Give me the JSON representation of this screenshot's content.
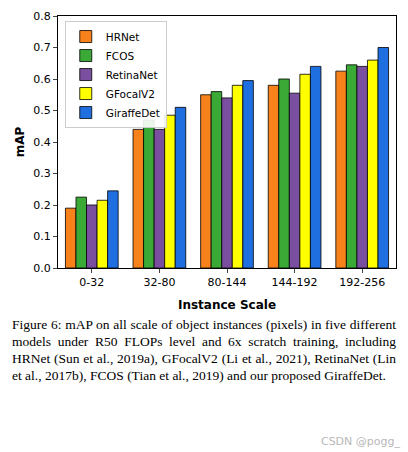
{
  "chart_data": {
    "type": "bar",
    "x_label": "Instance Scale",
    "y_label": "mAP",
    "categories": [
      "0-32",
      "32-80",
      "80-144",
      "144-192",
      "192-256"
    ],
    "series": [
      {
        "name": "HRNet",
        "color": "#f7821b",
        "values": [
          0.19,
          0.44,
          0.55,
          0.58,
          0.625
        ]
      },
      {
        "name": "FCOS",
        "color": "#3aa935",
        "values": [
          0.225,
          0.47,
          0.56,
          0.6,
          0.645
        ]
      },
      {
        "name": "RetinaNet",
        "color": "#7b4fa0",
        "values": [
          0.2,
          0.44,
          0.54,
          0.555,
          0.64
        ]
      },
      {
        "name": "GFocalV2",
        "color": "#ffff00",
        "values": [
          0.215,
          0.485,
          0.58,
          0.615,
          0.66
        ]
      },
      {
        "name": "GiraffeDet",
        "color": "#1f6fe0",
        "values": [
          0.245,
          0.51,
          0.595,
          0.64,
          0.7
        ]
      }
    ],
    "ylim": [
      0,
      0.8
    ],
    "yticks": [
      {
        "value": 0,
        "label": "0.0"
      },
      0.1,
      0.2,
      0.3,
      0.4,
      0.5,
      0.6,
      0.7,
      0.8
    ],
    "grid": false,
    "legend": "upper left"
  },
  "caption": "Figure 6: mAP on all scale of object instances (pixels) in five different models under R50 FLOPs level and 6x scratch training, including HRNet (Sun et al., 2019a), GFocalV2 (Li et al., 2021), RetinaNet (Lin et al., 2017b), FCOS (Tian et al., 2019) and our proposed GiraffeDet.",
  "watermark": "CSDN @pogg_"
}
